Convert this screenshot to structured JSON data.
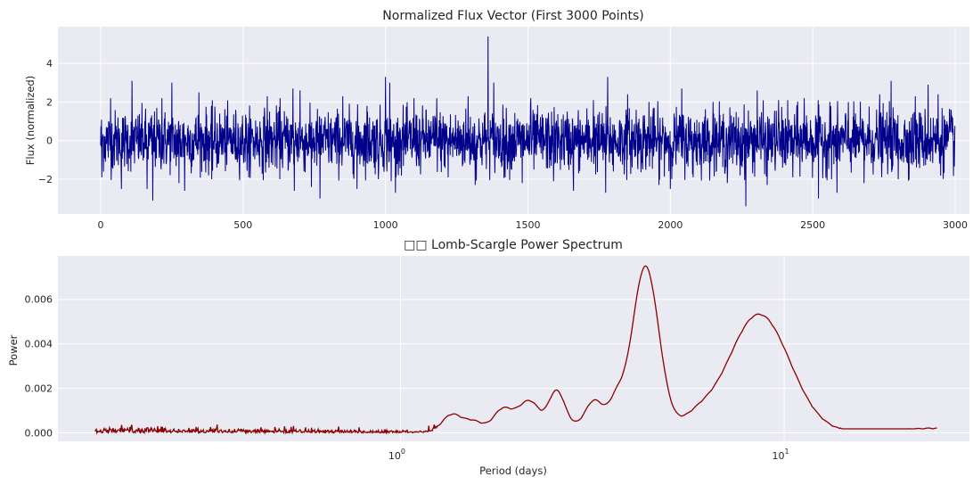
{
  "chart_data": [
    {
      "type": "line",
      "title": "Normalized Flux Vector (First 3000 Points)",
      "xlabel": "",
      "ylabel": "Flux (normalized)",
      "xlim": [
        -150,
        3050
      ],
      "ylim": [
        -3.8,
        5.9
      ],
      "xticks": [
        0,
        500,
        1000,
        1500,
        2000,
        2500,
        3000
      ],
      "xtick_labels": [
        "0",
        "500",
        "1000",
        "1500",
        "2000",
        "2500",
        "3000"
      ],
      "yticks": [
        -2,
        0,
        2,
        4
      ],
      "ytick_labels": [
        "−2",
        "0",
        "2",
        "4"
      ],
      "grid": true,
      "line_color": "#00008b",
      "series": [
        {
          "name": "",
          "n_points": 3000,
          "distribution": "noise around 0, std ~0.8",
          "spikes": [
            [
              4,
              -1.9
            ],
            [
              35,
              2.2
            ],
            [
              73,
              -2.5
            ],
            [
              110,
              3.1
            ],
            [
              163,
              -2.5
            ],
            [
              183,
              -3.1
            ],
            [
              215,
              2.2
            ],
            [
              250,
              3.0
            ],
            [
              275,
              -2.2
            ],
            [
              295,
              -2.6
            ],
            [
              345,
              2.5
            ],
            [
              390,
              -2.0
            ],
            [
              520,
              -1.9
            ],
            [
              585,
              2.3
            ],
            [
              630,
              2.2
            ],
            [
              680,
              -2.6
            ],
            [
              675,
              2.7
            ],
            [
              700,
              2.6
            ],
            [
              740,
              -2.4
            ],
            [
              770,
              -3.0
            ],
            [
              850,
              2.3
            ],
            [
              900,
              -2.5
            ],
            [
              935,
              1.8
            ],
            [
              975,
              -2.0
            ],
            [
              1000,
              3.3
            ],
            [
              1015,
              3.0
            ],
            [
              1020,
              -2.1
            ],
            [
              1035,
              -2.7
            ],
            [
              1100,
              2.2
            ],
            [
              1180,
              2.2
            ],
            [
              1220,
              -1.9
            ],
            [
              1290,
              2.3
            ],
            [
              1315,
              -2.3
            ],
            [
              1360,
              5.4
            ],
            [
              1380,
              3.0
            ],
            [
              1420,
              -1.9
            ],
            [
              1480,
              -2.2
            ],
            [
              1510,
              2.2
            ],
            [
              1590,
              -2.1
            ],
            [
              1660,
              -2.6
            ],
            [
              1730,
              2.1
            ],
            [
              1773,
              -2.7
            ],
            [
              1780,
              3.3
            ],
            [
              1800,
              -1.6
            ],
            [
              1850,
              2.4
            ],
            [
              1880,
              1.6
            ],
            [
              1925,
              2.0
            ],
            [
              1960,
              -2.3
            ],
            [
              2000,
              -2.5
            ],
            [
              2040,
              2.7
            ],
            [
              2080,
              -1.9
            ],
            [
              2150,
              2.0
            ],
            [
              2200,
              -2.2
            ],
            [
              2245,
              -1.8
            ],
            [
              2265,
              -3.4
            ],
            [
              2305,
              2.6
            ],
            [
              2340,
              -2.3
            ],
            [
              2380,
              2.1
            ],
            [
              2430,
              -1.9
            ],
            [
              2470,
              2.2
            ],
            [
              2520,
              -3.0
            ],
            [
              2560,
              2.0
            ],
            [
              2585,
              -2.7
            ],
            [
              2625,
              2.0
            ],
            [
              2680,
              -2.2
            ],
            [
              2735,
              2.4
            ],
            [
              2775,
              3.1
            ],
            [
              2800,
              -2.0
            ],
            [
              2860,
              2.3
            ],
            [
              2905,
              2.9
            ],
            [
              2940,
              2.4
            ],
            [
              2985,
              1.6
            ]
          ]
        }
      ]
    },
    {
      "type": "line",
      "title": "□□ Lomb-Scargle Power Spectrum",
      "xlabel": "Period (days)",
      "ylabel": "Power",
      "xscale": "log",
      "xlim": [
        0.128,
        30.4
      ],
      "ylim": [
        -0.00038,
        0.00795
      ],
      "xticks": [
        1,
        10
      ],
      "xtick_labels": [
        {
          "base": "10",
          "exp": "0"
        },
        {
          "base": "10",
          "exp": "1"
        }
      ],
      "minor_xtick_grid": true,
      "yticks": [
        0.0,
        0.002,
        0.004,
        0.006
      ],
      "ytick_labels": [
        "0.000",
        "0.002",
        "0.004",
        "0.006"
      ],
      "grid": true,
      "line_color": "#8b0000",
      "period_range": [
        0.16,
        25
      ],
      "series": [
        {
          "name": "",
          "baseline": 0.00018,
          "peaks": [
            {
              "period": 1.36,
              "power": 0.00078,
              "width": 0.025
            },
            {
              "period": 1.55,
              "power": 0.00048,
              "width": 0.025
            },
            {
              "period": 1.85,
              "power": 0.00105,
              "width": 0.025
            },
            {
              "period": 2.05,
              "power": 0.00055,
              "width": 0.02
            },
            {
              "period": 2.2,
              "power": 0.00118,
              "width": 0.022
            },
            {
              "period": 2.55,
              "power": 0.00185,
              "width": 0.022
            },
            {
              "period": 2.8,
              "power": 0.00015,
              "width": 0.02
            },
            {
              "period": 3.2,
              "power": 0.00142,
              "width": 0.025
            },
            {
              "period": 3.65,
              "power": 0.00118,
              "width": 0.02
            },
            {
              "period": 4.35,
              "power": 0.00745,
              "width": 0.035
            },
            {
              "period": 5.9,
              "power": 0.00052,
              "width": 0.04
            },
            {
              "period": 8.6,
              "power": 0.0053,
              "width": 0.08
            }
          ],
          "notes": "low-period region (0.16–1.2 d) is noisy near zero with small oscillations up to ~0.0004"
        }
      ]
    }
  ]
}
